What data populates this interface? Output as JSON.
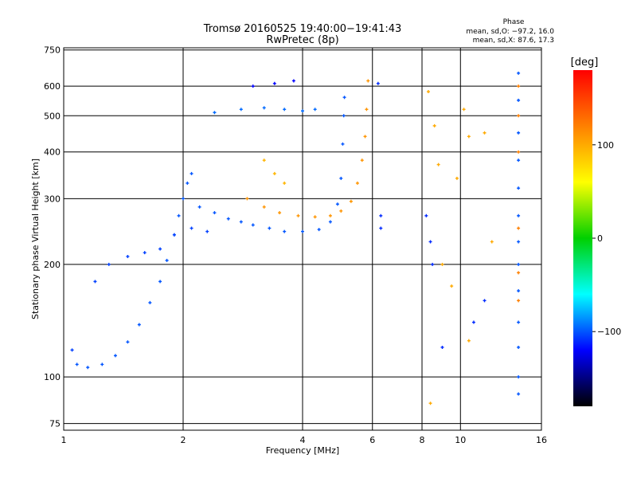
{
  "chart_data": {
    "type": "scatter",
    "title": "Tromsø 20160525 19:40:00−19:41:43",
    "subtitle": "RwPretec (8p)",
    "xlabel": "Frequency [MHz]",
    "ylabel": "Stationary phase Virtual Height [km]",
    "x_scale": "log",
    "y_scale": "log",
    "xlim": [
      1,
      16
    ],
    "ylim": [
      72,
      760
    ],
    "x_ticks": [
      1,
      2,
      4,
      6,
      8,
      10,
      16
    ],
    "x_tick_labels": [
      "1",
      "2",
      "4",
      "6",
      "8",
      "10",
      "16"
    ],
    "y_ticks": [
      75,
      100,
      200,
      300,
      400,
      500,
      600,
      750
    ],
    "y_tick_labels": [
      "75",
      "100",
      "200",
      "300",
      "400",
      "500",
      "600",
      "750"
    ],
    "grid": true,
    "stats": {
      "heading": "Phase",
      "line1": "mean, sd,O: −97.2, 16.0",
      "line2": "mean, sd,X:  87.6, 17.3"
    },
    "colorbar": {
      "label": "[deg]",
      "range": [
        -180,
        180
      ],
      "ticks": [
        100,
        0,
        -100
      ],
      "tick_labels": [
        "100",
        "0",
        "−100"
      ],
      "colors": [
        "#ff0000",
        "#ff8000",
        "#ffff00",
        "#00d000",
        "#00ffff",
        "#0000ff",
        "#000000"
      ]
    },
    "series": [
      {
        "points": [
          [
            1.08,
            108
          ],
          [
            1.15,
            106
          ],
          [
            1.25,
            108
          ],
          [
            1.35,
            114
          ],
          [
            1.45,
            124
          ],
          [
            1.55,
            138
          ],
          [
            1.65,
            158
          ],
          [
            1.75,
            180
          ],
          [
            1.82,
            205
          ],
          [
            1.9,
            240
          ],
          [
            1.95,
            270
          ],
          [
            2.0,
            300
          ],
          [
            2.05,
            330
          ],
          [
            2.1,
            350
          ]
        ],
        "phase": -100
      },
      {
        "points": [
          [
            1.05,
            118
          ],
          [
            1.2,
            180
          ],
          [
            1.3,
            200
          ],
          [
            1.45,
            210
          ],
          [
            1.6,
            215
          ],
          [
            1.75,
            220
          ],
          [
            1.9,
            240
          ],
          [
            2.1,
            250
          ],
          [
            2.3,
            245
          ]
        ],
        "phase": -105
      },
      {
        "points": [
          [
            2.2,
            285
          ],
          [
            2.4,
            275
          ],
          [
            2.6,
            265
          ],
          [
            2.8,
            260
          ],
          [
            3.0,
            255
          ],
          [
            3.3,
            250
          ],
          [
            3.6,
            245
          ],
          [
            4.0,
            245
          ],
          [
            4.4,
            248
          ],
          [
            4.7,
            260
          ],
          [
            4.9,
            290
          ],
          [
            5.0,
            340
          ],
          [
            5.05,
            420
          ],
          [
            5.08,
            500
          ],
          [
            5.1,
            560
          ]
        ],
        "phase": -100
      },
      {
        "points": [
          [
            2.9,
            300
          ],
          [
            3.2,
            285
          ],
          [
            3.5,
            275
          ],
          [
            3.9,
            270
          ],
          [
            4.3,
            268
          ],
          [
            4.7,
            270
          ],
          [
            5.0,
            278
          ],
          [
            5.3,
            295
          ],
          [
            5.5,
            330
          ],
          [
            5.65,
            380
          ],
          [
            5.75,
            440
          ],
          [
            5.8,
            520
          ],
          [
            5.85,
            620
          ]
        ],
        "phase": 110
      },
      {
        "points": [
          [
            2.4,
            510
          ],
          [
            2.8,
            520
          ],
          [
            3.2,
            525
          ],
          [
            3.6,
            520
          ],
          [
            4.0,
            515
          ],
          [
            4.3,
            520
          ]
        ],
        "phase": -95
      },
      {
        "points": [
          [
            3.0,
            600
          ],
          [
            3.4,
            610
          ],
          [
            3.8,
            620
          ]
        ],
        "phase": -120
      },
      {
        "points": [
          [
            3.2,
            380
          ],
          [
            3.4,
            350
          ],
          [
            3.6,
            330
          ]
        ],
        "phase": 95
      },
      {
        "points": [
          [
            14.0,
            650
          ],
          [
            14.0,
            550
          ],
          [
            14.0,
            450
          ],
          [
            14.0,
            380
          ],
          [
            14.0,
            320
          ],
          [
            14.0,
            270
          ],
          [
            14.0,
            230
          ],
          [
            14.0,
            200
          ],
          [
            14.0,
            170
          ],
          [
            14.0,
            140
          ],
          [
            14.0,
            120
          ],
          [
            14.0,
            100
          ],
          [
            14.0,
            90
          ]
        ],
        "phase": -100
      },
      {
        "points": [
          [
            14.0,
            600
          ],
          [
            14.0,
            500
          ],
          [
            14.0,
            400
          ],
          [
            14.0,
            250
          ],
          [
            14.0,
            190
          ],
          [
            14.0,
            160
          ]
        ],
        "phase": 120
      },
      {
        "points": [
          [
            8.3,
            580
          ],
          [
            8.6,
            470
          ],
          [
            8.8,
            370
          ],
          [
            9.8,
            340
          ],
          [
            10.2,
            520
          ],
          [
            10.5,
            440
          ],
          [
            11.5,
            450
          ],
          [
            12.0,
            230
          ],
          [
            9.0,
            200
          ],
          [
            9.5,
            175
          ],
          [
            10.5,
            125
          ],
          [
            8.4,
            85
          ]
        ],
        "phase": 100
      },
      {
        "points": [
          [
            6.2,
            610
          ],
          [
            6.3,
            270
          ],
          [
            6.3,
            250
          ],
          [
            8.2,
            270
          ],
          [
            8.4,
            230
          ],
          [
            11.5,
            160
          ],
          [
            10.8,
            140
          ],
          [
            9.0,
            120
          ],
          [
            8.5,
            200
          ]
        ],
        "phase": -110
      }
    ]
  }
}
